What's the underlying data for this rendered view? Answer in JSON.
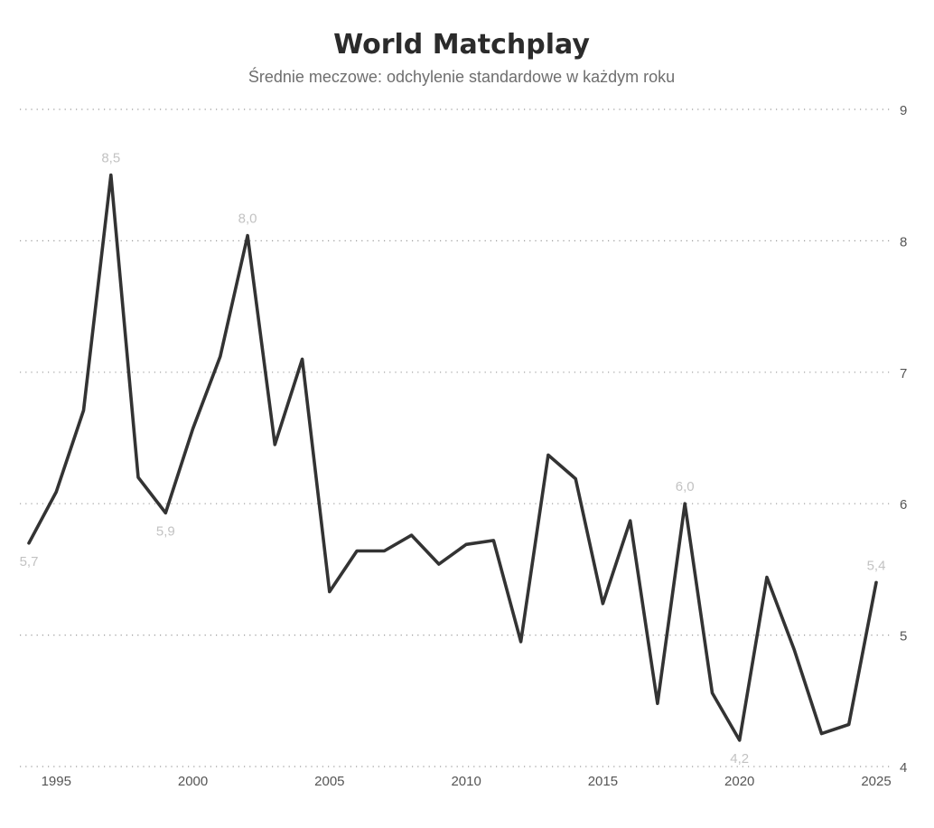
{
  "chart_data": {
    "type": "line",
    "title": "World Matchplay",
    "subtitle": "Średnie meczowe: odchylenie standardowe w każdym roku",
    "xlabel": "",
    "ylabel": "",
    "xlim": [
      1994,
      2025
    ],
    "ylim": [
      4,
      9
    ],
    "x_ticks": [
      1995,
      2000,
      2005,
      2010,
      2015,
      2020,
      2025
    ],
    "y_ticks": [
      4,
      5,
      6,
      7,
      8,
      9
    ],
    "y_axis_position": "right",
    "grid": "horizontal dotted",
    "legend": "none",
    "line_color": "#333333",
    "label_color": "#c2c2c2",
    "series": [
      {
        "x": [
          1994,
          1995,
          1996,
          1997,
          1998,
          1999,
          2000,
          2001,
          2002,
          2003,
          2004,
          2005,
          2006,
          2007,
          2008,
          2009,
          2010,
          2011,
          2012,
          2013,
          2014,
          2015,
          2016,
          2017,
          2018,
          2019,
          2020,
          2021,
          2022,
          2023,
          2024,
          2025
        ],
        "y": [
          5.7,
          6.09,
          6.71,
          8.5,
          6.2,
          5.93,
          6.57,
          7.12,
          8.04,
          6.45,
          7.1,
          5.33,
          5.64,
          5.64,
          5.76,
          5.54,
          5.69,
          5.72,
          4.95,
          6.37,
          6.19,
          5.24,
          5.87,
          4.48,
          6.0,
          4.56,
          4.2,
          5.44,
          4.89,
          4.25,
          4.32,
          5.4
        ]
      }
    ],
    "data_labels": [
      {
        "x": 1994,
        "y": 5.7,
        "text": "5,7",
        "pos": "below"
      },
      {
        "x": 1997,
        "y": 8.5,
        "text": "8,5",
        "pos": "above"
      },
      {
        "x": 1999,
        "y": 5.93,
        "text": "5,9",
        "pos": "below"
      },
      {
        "x": 2002,
        "y": 8.04,
        "text": "8,0",
        "pos": "above"
      },
      {
        "x": 2018,
        "y": 6.0,
        "text": "6,0",
        "pos": "above"
      },
      {
        "x": 2020,
        "y": 4.2,
        "text": "4,2",
        "pos": "below"
      },
      {
        "x": 2025,
        "y": 5.4,
        "text": "5,4",
        "pos": "above"
      }
    ]
  }
}
